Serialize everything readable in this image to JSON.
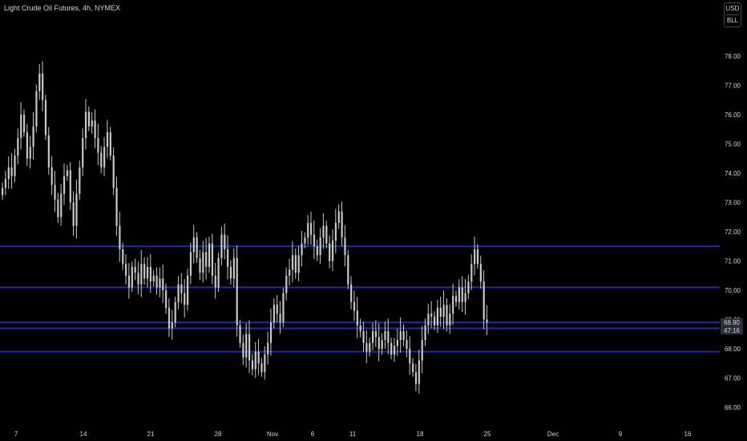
{
  "symbol": {
    "title": "Light Crude Oil Futures, 4h, NYMEX"
  },
  "currency": {
    "code": "USD",
    "unit": "BLL"
  },
  "colors": {
    "background": "#000000",
    "candle": "#c8c8c8",
    "level_line": "#1a2ea8",
    "text": "#d1d4dc",
    "price_label_bg": "#2a2e39"
  },
  "price_axis": {
    "ticks": [
      "78.00",
      "77.00",
      "76.00",
      "75.00",
      "74.00",
      "73.00",
      "72.00",
      "71.00",
      "70.00",
      "69.00",
      "68.00",
      "67.00",
      "66.00"
    ]
  },
  "last_price": {
    "value": "68.90",
    "countdown": "47:16"
  },
  "time_axis": {
    "ticks": [
      "7",
      "14",
      "21",
      "28",
      "Nov",
      "6",
      "11",
      "18",
      "25",
      "Dec",
      "9",
      "16"
    ]
  },
  "chart_data": {
    "type": "candlestick",
    "timeframe": "4h",
    "ylim": [
      65.5,
      79.4
    ],
    "grid": false,
    "horizontal_levels": [
      71.5,
      70.1,
      68.9,
      68.7,
      67.9
    ],
    "series": [
      {
        "name": "Light Crude Oil Futures",
        "close": [
          73.5,
          73.8,
          74.2,
          73.9,
          74.6,
          75.2,
          76.0,
          75.4,
          74.5,
          74.9,
          75.6,
          76.8,
          77.4,
          76.5,
          75.3,
          74.2,
          73.6,
          73.1,
          72.5,
          73.3,
          73.9,
          74.1,
          73.0,
          72.2,
          73.3,
          74.2,
          75.2,
          76.1,
          75.6,
          75.8,
          75.2,
          74.7,
          74.2,
          74.9,
          75.4,
          74.6,
          73.5,
          72.2,
          71.4,
          70.9,
          70.5,
          70.1,
          70.8,
          70.6,
          70.2,
          70.9,
          70.4,
          70.8,
          70.3,
          70.5,
          70.1,
          70.4,
          70.0,
          69.4,
          68.7,
          68.9,
          69.6,
          70.2,
          69.9,
          69.5,
          70.5,
          71.3,
          71.8,
          71.1,
          70.6,
          71.3,
          70.8,
          71.6,
          70.5,
          70.1,
          71.1,
          71.9,
          71.4,
          70.8,
          70.4,
          71.1,
          68.8,
          68.2,
          67.7,
          68.5,
          67.6,
          67.3,
          67.9,
          67.5,
          67.2,
          67.8,
          68.2,
          68.9,
          69.5,
          69.2,
          68.9,
          69.9,
          70.5,
          70.7,
          71.2,
          70.6,
          71.2,
          71.6,
          71.8,
          72.3,
          71.9,
          71.5,
          71.2,
          71.8,
          72.2,
          71.6,
          71.0,
          71.7,
          72.3,
          72.7,
          71.8,
          71.2,
          70.2,
          69.6,
          69.3,
          68.8,
          68.6,
          68.2,
          67.9,
          68.2,
          68.6,
          68.4,
          68.0,
          68.3,
          68.6,
          68.2,
          67.8,
          68.1,
          68.3,
          68.6,
          68.3,
          68.0,
          67.5,
          67.2,
          66.8,
          67.6,
          68.3,
          68.8,
          69.2,
          69.1,
          68.8,
          69.4,
          69.1,
          69.5,
          68.8,
          69.2,
          69.8,
          69.6,
          70.1,
          69.6,
          69.9,
          70.3,
          70.9,
          71.4,
          70.9,
          70.3,
          69.0,
          68.9
        ]
      }
    ]
  }
}
